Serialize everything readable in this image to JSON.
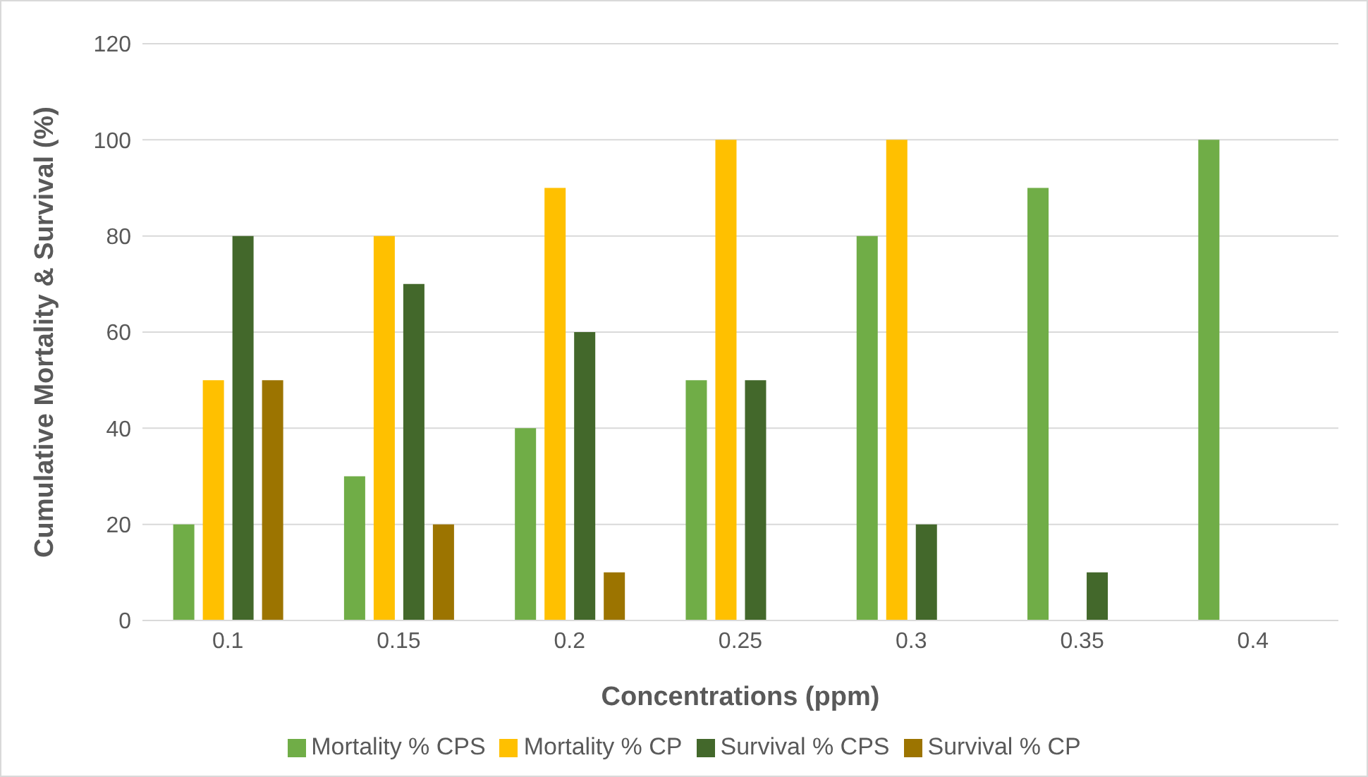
{
  "chart_data": {
    "type": "bar",
    "xlabel": "Concentrations (ppm)",
    "ylabel": "Cumulative Mortality & Survival (%)",
    "categories": [
      "0.1",
      "0.15",
      "0.2",
      "0.25",
      "0.3",
      "0.35",
      "0.4"
    ],
    "series": [
      {
        "name": "Mortality % CPS",
        "color": "#70ad47",
        "values": [
          20,
          30,
          40,
          50,
          80,
          90,
          100
        ]
      },
      {
        "name": "Mortality % CP",
        "color": "#ffc000",
        "values": [
          50,
          80,
          90,
          100,
          100,
          null,
          null
        ]
      },
      {
        "name": "Survival % CPS",
        "color": "#43682b",
        "values": [
          80,
          70,
          60,
          50,
          20,
          10,
          null
        ]
      },
      {
        "name": "Survival % CP",
        "color": "#9c7400",
        "values": [
          50,
          20,
          10,
          null,
          null,
          null,
          null
        ]
      }
    ],
    "ylim": [
      0,
      120
    ],
    "yticks": [
      0,
      20,
      40,
      60,
      80,
      100,
      120
    ],
    "grid": "y",
    "legend": "bottom"
  }
}
